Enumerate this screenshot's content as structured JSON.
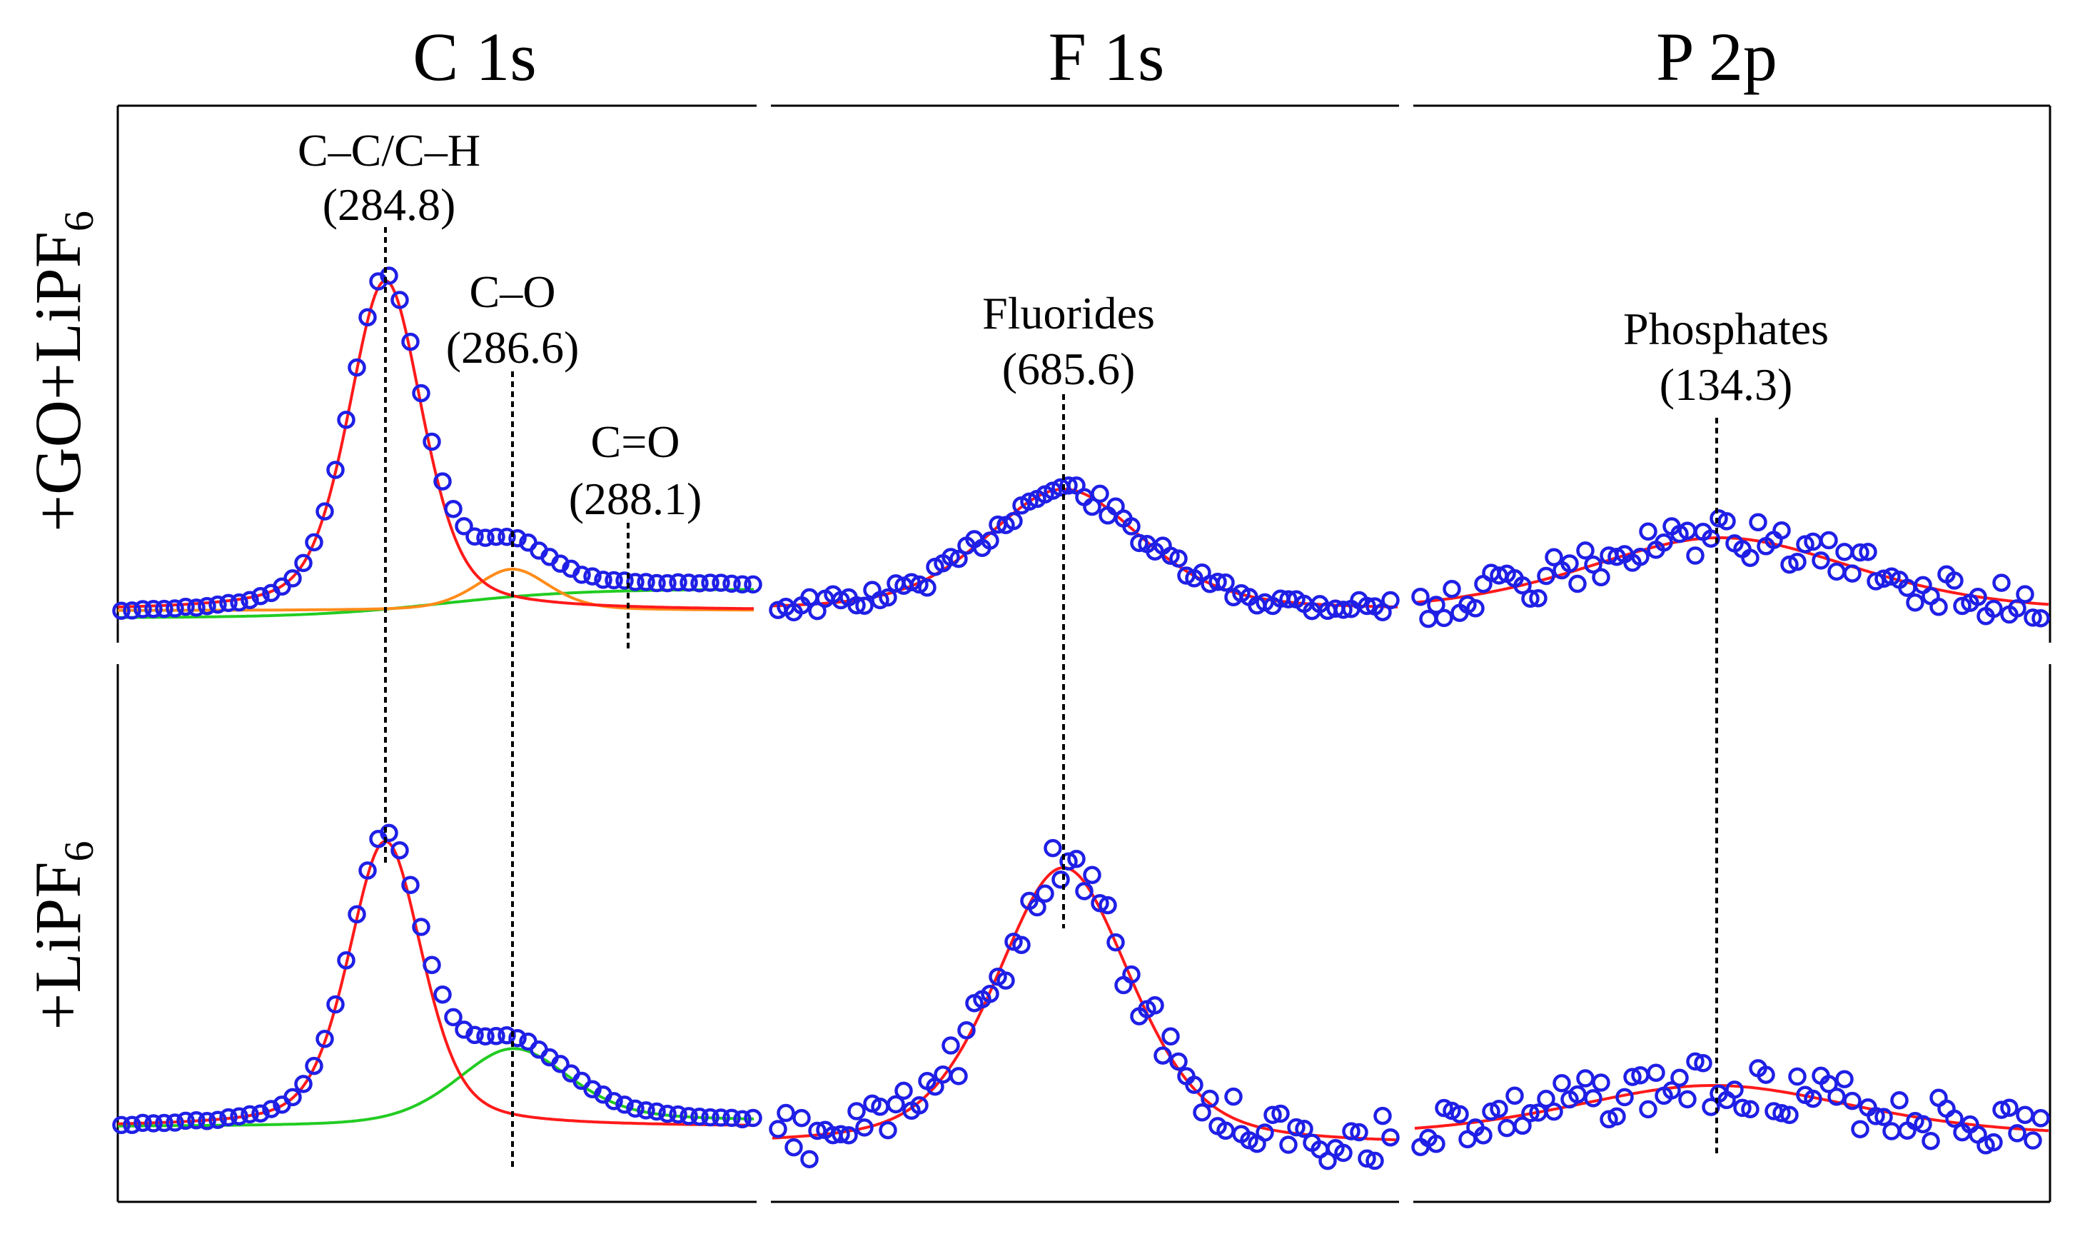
{
  "figure": {
    "column_titles": [
      "C 1s",
      "F 1s",
      "P 2p"
    ],
    "row_labels": [
      {
        "text": "+GO+LiPF",
        "sub": "6"
      },
      {
        "text": "+LiPF",
        "sub": "6"
      }
    ]
  },
  "colors": {
    "data_points": "#1f1fe6",
    "total_fit": "#ff1a1a",
    "component_a": "#ff8c1a",
    "component_b": "#22cc22"
  },
  "chart_data": [
    {
      "type": "scatter",
      "panel": "C 1s",
      "row": "+GO+LiPF6",
      "x_direction": "decreasing",
      "annotations": [
        {
          "name": "C–C/C–H",
          "value": "(284.8)",
          "position": 284.8
        },
        {
          "name": "C–O",
          "value": "(286.6)",
          "position": 286.6
        },
        {
          "name": "C=O",
          "value": "(288.1)",
          "position": 288.1
        }
      ],
      "components": [
        {
          "position": 284.8,
          "amplitude": 1.0,
          "width": 0.45,
          "color": "red"
        },
        {
          "position": 286.6,
          "amplitude": 0.12,
          "width": 0.45,
          "color": "orange"
        },
        {
          "position": 288.1,
          "amplitude": 0.06,
          "width": 1.4,
          "color": "green"
        }
      ]
    },
    {
      "type": "scatter",
      "panel": "F 1s",
      "row": "+GO+LiPF6",
      "annotations": [
        {
          "name": "Fluorides",
          "value": "(685.6)",
          "position": 685.6
        }
      ],
      "components": [
        {
          "position": 685.6,
          "amplitude": 0.36,
          "color": "red"
        }
      ]
    },
    {
      "type": "scatter",
      "panel": "P 2p",
      "row": "+GO+LiPF6",
      "annotations": [
        {
          "name": "Phosphates",
          "value": "(134.3)",
          "position": 134.3
        }
      ],
      "components": [
        {
          "position": 134.3,
          "amplitude": 0.22,
          "color": "red"
        }
      ]
    },
    {
      "type": "scatter",
      "panel": "C 1s",
      "row": "+LiPF6",
      "components": [
        {
          "position": 284.8,
          "amplitude": 0.85,
          "color": "red"
        },
        {
          "position": 286.6,
          "amplitude": 0.22,
          "color": "green"
        }
      ]
    },
    {
      "type": "scatter",
      "panel": "F 1s",
      "row": "+LiPF6",
      "components": [
        {
          "position": 685.6,
          "amplitude": 0.8,
          "color": "red"
        }
      ]
    },
    {
      "type": "scatter",
      "panel": "P 2p",
      "row": "+LiPF6",
      "components": [
        {
          "position": 134.3,
          "amplitude": 0.16,
          "color": "red"
        }
      ]
    }
  ]
}
